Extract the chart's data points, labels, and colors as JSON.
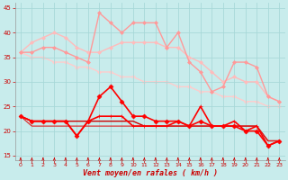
{
  "title": "",
  "xlabel": "Vent moyen/en rafales ( km/h )",
  "bg_color": "#c8ecec",
  "grid_color": "#a8d8d8",
  "xlim": [
    -0.5,
    23.5
  ],
  "ylim": [
    14,
    46
  ],
  "yticks": [
    15,
    20,
    25,
    30,
    35,
    40,
    45
  ],
  "xticks": [
    0,
    1,
    2,
    3,
    4,
    5,
    6,
    7,
    8,
    9,
    10,
    11,
    12,
    13,
    14,
    15,
    16,
    17,
    18,
    19,
    20,
    21,
    22,
    23
  ],
  "series": [
    {
      "x": [
        0,
        1,
        2,
        3,
        4,
        5,
        6,
        7,
        8,
        9,
        10,
        11,
        12,
        13,
        14,
        15,
        16,
        17,
        18,
        19,
        20,
        21,
        22,
        23
      ],
      "y": [
        36,
        38,
        39,
        40,
        39,
        37,
        36,
        36,
        37,
        38,
        38,
        38,
        38,
        37,
        37,
        35,
        34,
        32,
        30,
        31,
        30,
        30,
        27,
        26
      ],
      "color": "#ffbbbb",
      "lw": 1.0,
      "marker": "D",
      "ms": 2.0,
      "zorder": 2
    },
    {
      "x": [
        0,
        1,
        2,
        3,
        4,
        5,
        6,
        7,
        8,
        9,
        10,
        11,
        12,
        13,
        14,
        15,
        16,
        17,
        18,
        19,
        20,
        21,
        22,
        23
      ],
      "y": [
        36,
        36,
        37,
        37,
        36,
        35,
        34,
        44,
        42,
        40,
        42,
        42,
        42,
        37,
        40,
        34,
        32,
        28,
        29,
        34,
        34,
        33,
        27,
        26
      ],
      "color": "#ff9999",
      "lw": 1.0,
      "marker": "D",
      "ms": 2.0,
      "zorder": 2
    },
    {
      "x": [
        0,
        1,
        2,
        3,
        4,
        5,
        6,
        7,
        8,
        9,
        10,
        11,
        12,
        13,
        14,
        15,
        16,
        17,
        18,
        19,
        20,
        21,
        22,
        23
      ],
      "y": [
        36,
        35,
        35,
        34,
        34,
        33,
        33,
        32,
        32,
        31,
        31,
        30,
        30,
        30,
        29,
        29,
        28,
        28,
        27,
        27,
        26,
        26,
        25,
        25
      ],
      "color": "#ffcccc",
      "lw": 1.0,
      "marker": "D",
      "ms": 2.0,
      "zorder": 1
    },
    {
      "x": [
        0,
        1,
        2,
        3,
        4,
        5,
        6,
        7,
        8,
        9,
        10,
        11,
        12,
        13,
        14,
        15,
        16,
        17,
        18,
        19,
        20,
        21,
        22,
        23
      ],
      "y": [
        23,
        22,
        22,
        22,
        22,
        19,
        22,
        27,
        29,
        26,
        23,
        23,
        22,
        22,
        22,
        21,
        22,
        21,
        21,
        21,
        20,
        20,
        17,
        18
      ],
      "color": "#ff0000",
      "lw": 1.2,
      "marker": "D",
      "ms": 2.5,
      "zorder": 4
    },
    {
      "x": [
        0,
        1,
        2,
        3,
        4,
        5,
        6,
        7,
        8,
        9,
        10,
        11,
        12,
        13,
        14,
        15,
        16,
        17,
        18,
        19,
        20,
        21,
        22,
        23
      ],
      "y": [
        23,
        22,
        22,
        22,
        22,
        19,
        22,
        23,
        23,
        23,
        21,
        21,
        21,
        21,
        22,
        21,
        25,
        21,
        21,
        22,
        20,
        21,
        17,
        18
      ],
      "color": "#ff0000",
      "lw": 1.2,
      "marker": "+",
      "ms": 3.5,
      "zorder": 4
    },
    {
      "x": [
        0,
        1,
        2,
        3,
        4,
        5,
        6,
        7,
        8,
        9,
        10,
        11,
        12,
        13,
        14,
        15,
        16,
        17,
        18,
        19,
        20,
        21,
        22,
        23
      ],
      "y": [
        23,
        22,
        22,
        22,
        22,
        22,
        22,
        22,
        22,
        22,
        22,
        21,
        21,
        21,
        21,
        21,
        21,
        21,
        21,
        21,
        21,
        21,
        18,
        18
      ],
      "color": "#cc0000",
      "lw": 1.0,
      "marker": null,
      "ms": 0,
      "zorder": 3
    },
    {
      "x": [
        0,
        1,
        2,
        3,
        4,
        5,
        6,
        7,
        8,
        9,
        10,
        11,
        12,
        13,
        14,
        15,
        16,
        17,
        18,
        19,
        20,
        21,
        22,
        23
      ],
      "y": [
        23,
        21,
        21,
        21,
        21,
        21,
        21,
        21,
        21,
        21,
        21,
        21,
        21,
        21,
        21,
        21,
        21,
        21,
        21,
        21,
        21,
        21,
        18,
        18
      ],
      "color": "#dd2222",
      "lw": 0.8,
      "marker": null,
      "ms": 0,
      "zorder": 3
    }
  ],
  "arrow_color": "#cc0000",
  "xlabel_fontsize": 6.0,
  "tick_fontsize": 5.0
}
